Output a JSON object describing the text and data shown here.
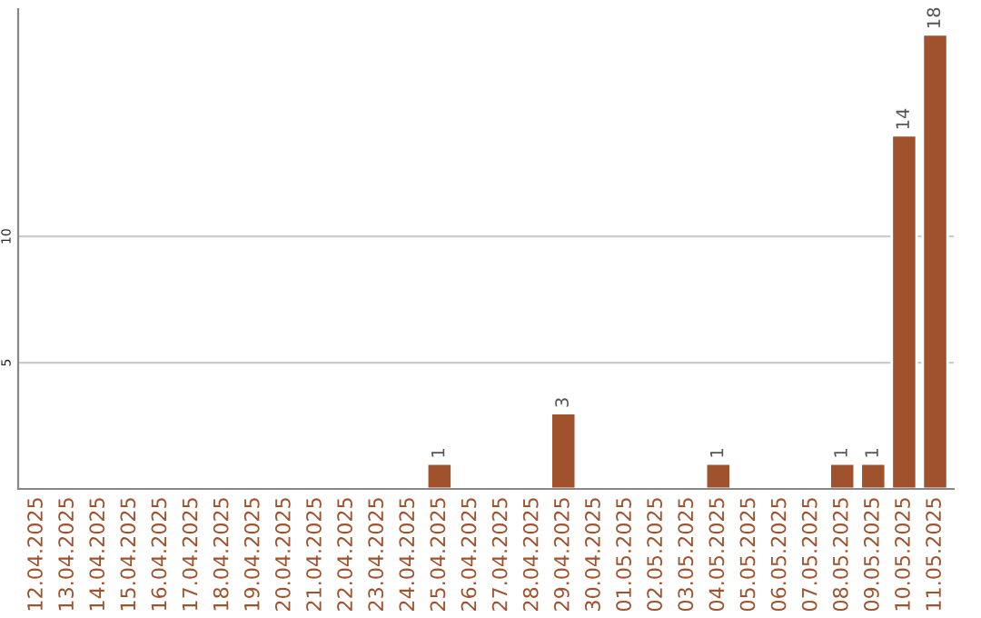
{
  "chart_data": {
    "type": "bar",
    "categories": [
      "12.04.2025",
      "13.04.2025",
      "14.04.2025",
      "15.04.2025",
      "16.04.2025",
      "17.04.2025",
      "18.04.2025",
      "19.04.2025",
      "20.04.2025",
      "21.04.2025",
      "22.04.2025",
      "23.04.2025",
      "24.04.2025",
      "25.04.2025",
      "26.04.2025",
      "27.04.2025",
      "28.04.2025",
      "29.04.2025",
      "30.04.2025",
      "01.05.2025",
      "02.05.2025",
      "03.05.2025",
      "04.05.2025",
      "05.05.2025",
      "06.05.2025",
      "07.05.2025",
      "08.05.2025",
      "09.05.2025",
      "10.05.2025",
      "11.05.2025"
    ],
    "values": [
      null,
      null,
      null,
      null,
      null,
      null,
      null,
      null,
      null,
      null,
      null,
      null,
      null,
      1,
      null,
      null,
      null,
      3,
      null,
      null,
      null,
      null,
      1,
      null,
      null,
      null,
      1,
      1,
      14,
      18
    ],
    "value_labels": [
      null,
      null,
      null,
      null,
      null,
      null,
      null,
      null,
      null,
      null,
      null,
      null,
      null,
      "1",
      null,
      null,
      null,
      "3",
      null,
      null,
      null,
      null,
      "1",
      null,
      null,
      null,
      "1",
      "1",
      "14",
      "18"
    ],
    "color": "#a0522d",
    "ylim": [
      0,
      19
    ],
    "yticks": [
      5,
      10
    ],
    "grid": "y"
  }
}
